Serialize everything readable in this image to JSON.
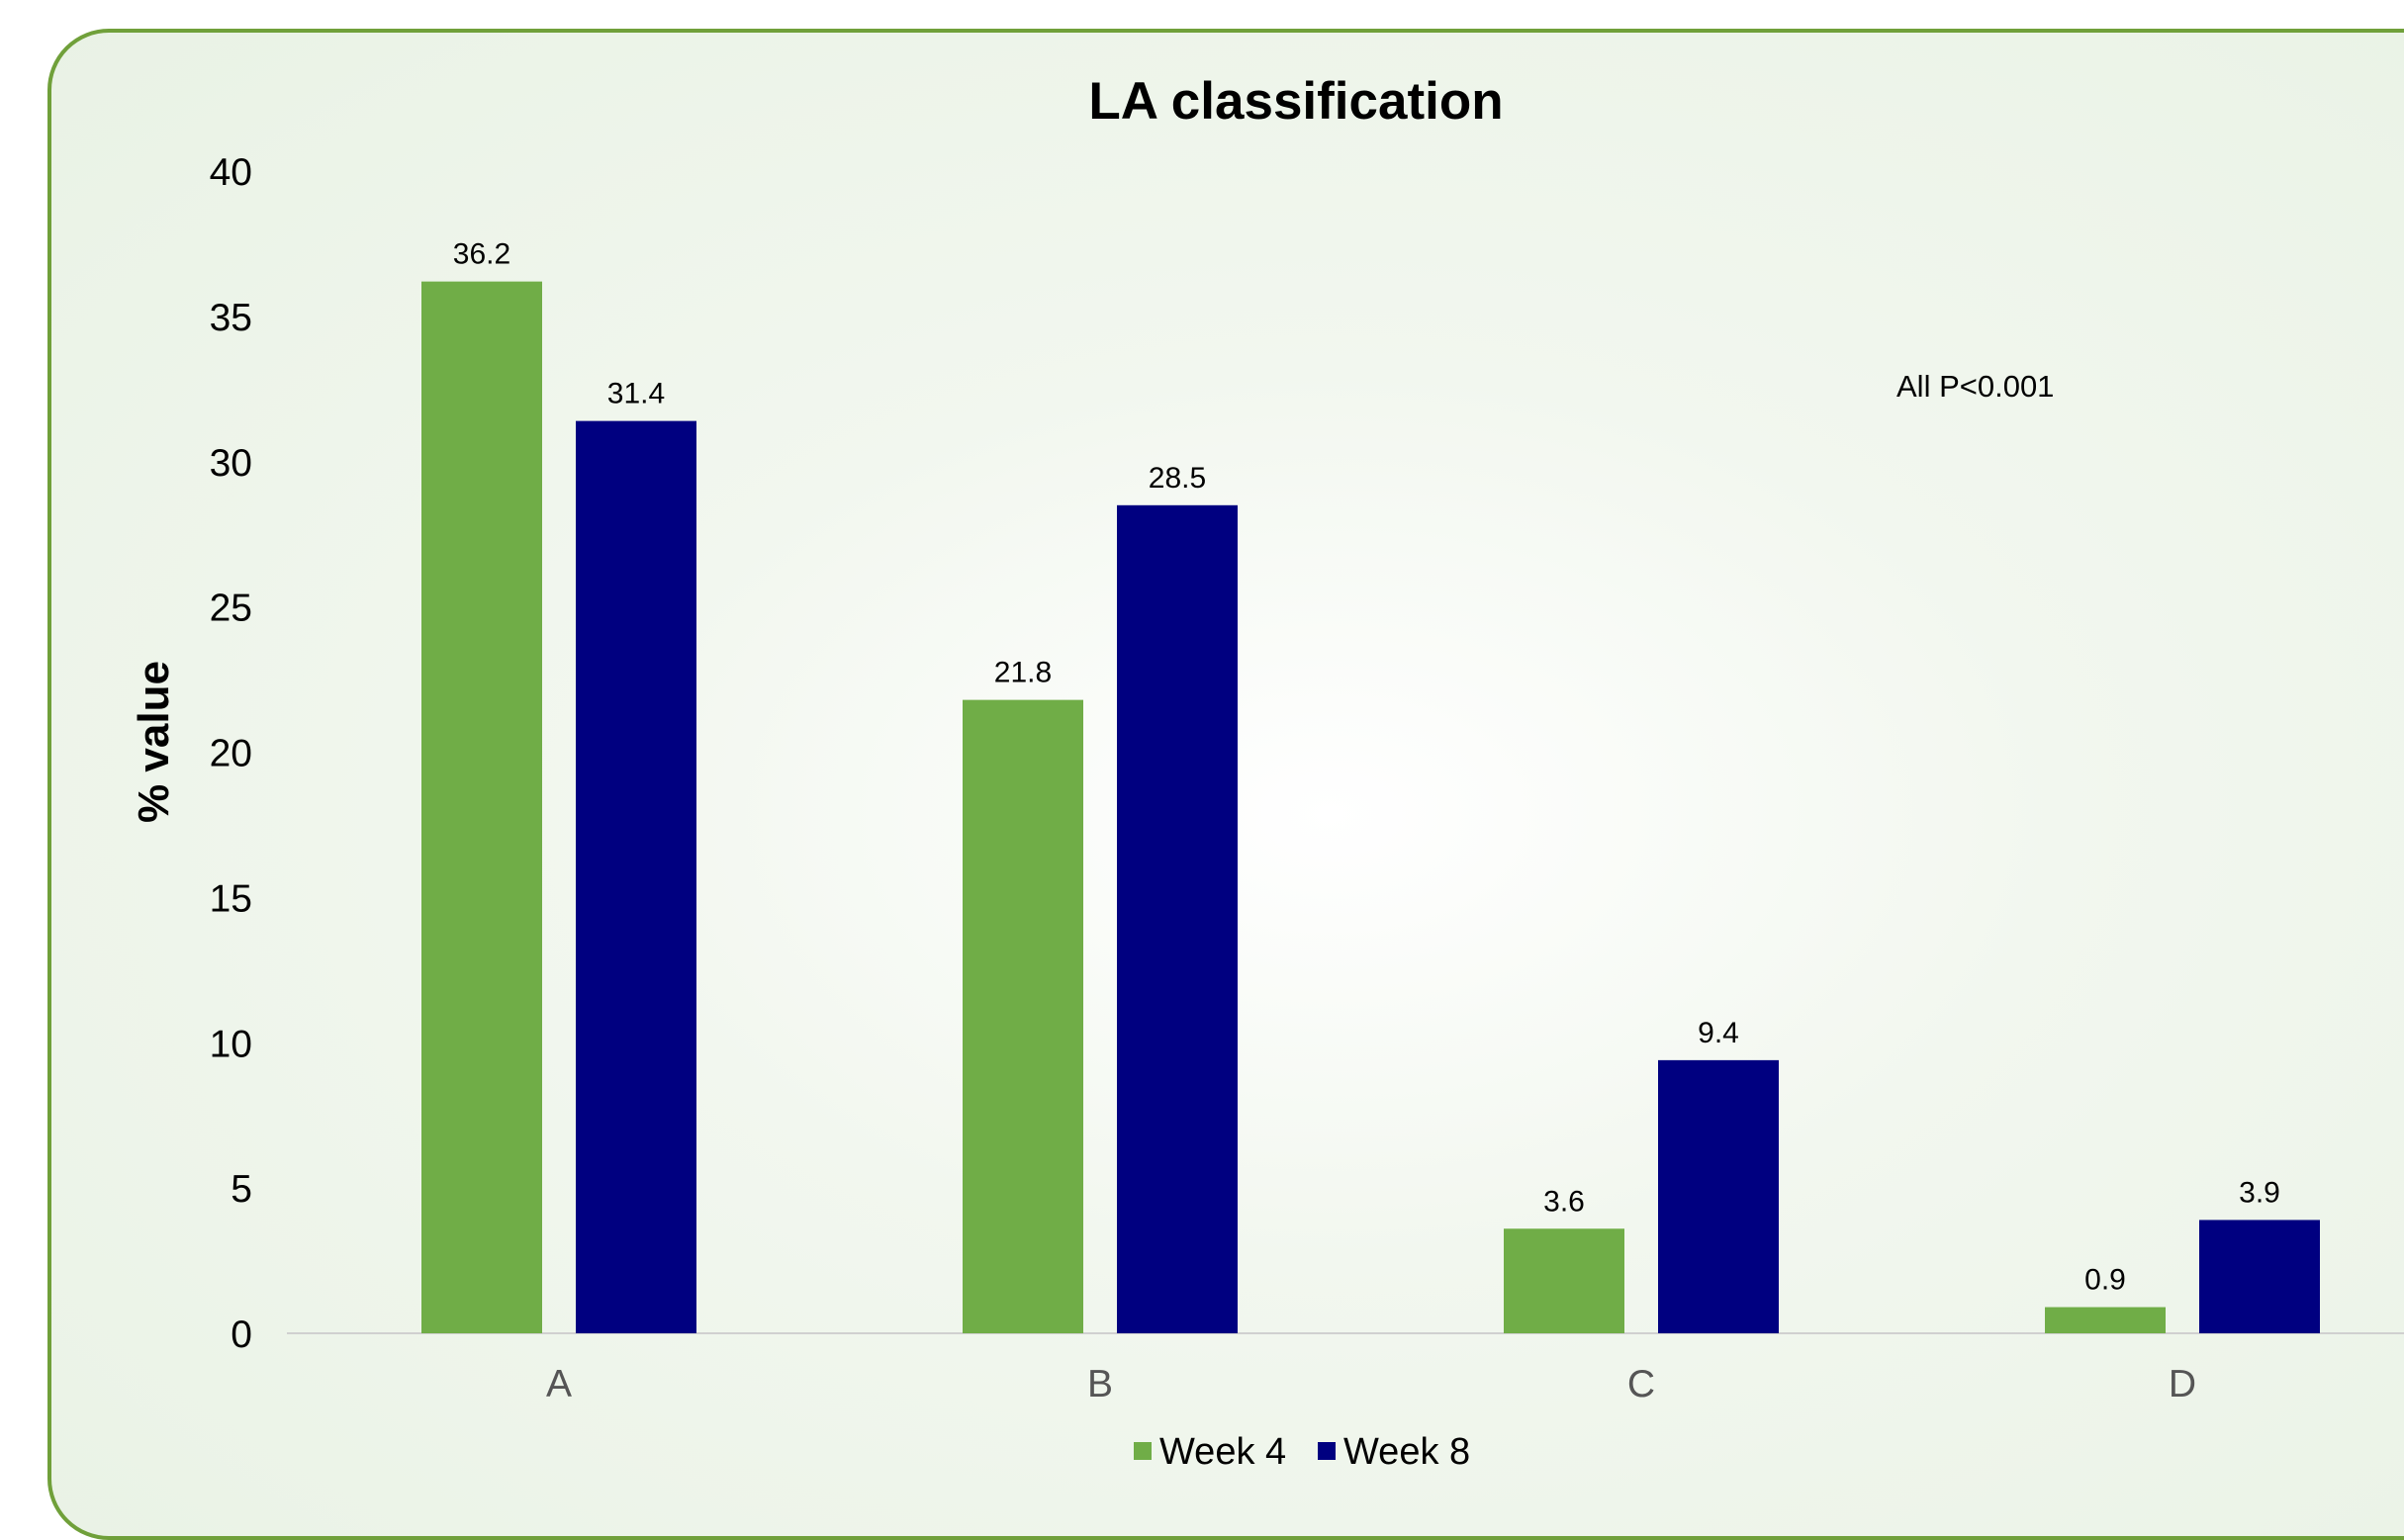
{
  "chart_data": {
    "type": "bar",
    "title": "LA classification",
    "ylabel": "% value",
    "xlabel": "",
    "categories": [
      "A",
      "B",
      "C",
      "D"
    ],
    "series": [
      {
        "name": "Week 4",
        "color": "#70ad47",
        "values": [
          36.2,
          21.8,
          3.6,
          0.9
        ]
      },
      {
        "name": "Week 8",
        "color": "#000080",
        "values": [
          31.4,
          28.5,
          9.4,
          3.9
        ]
      }
    ],
    "ylim": [
      0,
      40
    ],
    "yticks": [
      0,
      5,
      10,
      15,
      20,
      25,
      30,
      35,
      40
    ],
    "grid": false,
    "legend_position": "bottom",
    "annotation": "All P<0.001",
    "data_labels": true
  }
}
